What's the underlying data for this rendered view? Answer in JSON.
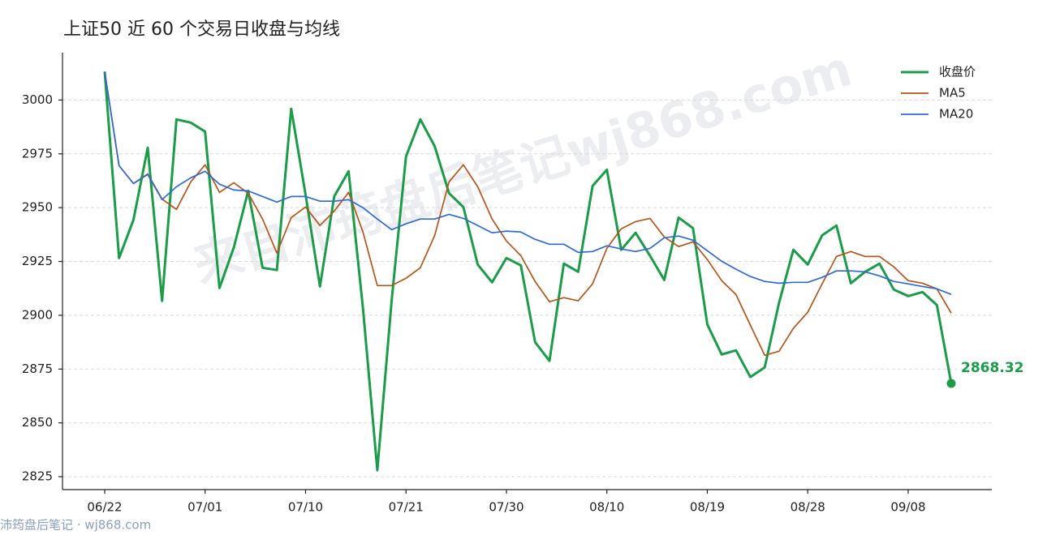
{
  "chart_data": {
    "type": "line",
    "title": "上证50 近 60 个交易日收盘与均线",
    "watermark": "来自沛筠盘后笔记wj868.com",
    "source": "沛筠盘后笔记 · wj868.com",
    "categories": [
      "06/22",
      null,
      null,
      null,
      null,
      null,
      null,
      "07/01",
      null,
      null,
      null,
      null,
      null,
      null,
      "07/10",
      null,
      null,
      null,
      null,
      null,
      null,
      "07/21",
      null,
      null,
      null,
      null,
      null,
      null,
      "07/30",
      null,
      null,
      null,
      null,
      null,
      null,
      "08/10",
      null,
      null,
      null,
      null,
      null,
      null,
      "08/19",
      null,
      null,
      null,
      null,
      null,
      null,
      "08/28",
      null,
      null,
      null,
      null,
      null,
      null,
      "09/08",
      null,
      null,
      null
    ],
    "series": [
      {
        "name": "收盘价",
        "color": "#1a9c48",
        "values": [
          3013.2,
          2926.6,
          2944.3,
          2977.8,
          2906.7,
          2991,
          2989.5,
          2985.3,
          2912.7,
          2931.5,
          2957.8,
          2922.1,
          2921,
          2995.9,
          2956,
          2913.4,
          2955.2,
          2966.9,
          2903.3,
          2828,
          2907,
          2973.7,
          2991,
          2978.5,
          2956.7,
          2950.3,
          2923.6,
          2915.3,
          2926.6,
          2923.2,
          2887.5,
          2878.8,
          2924,
          2920.2,
          2960.1,
          2967.6,
          2930.4,
          2938.3,
          2927.7,
          2916.4,
          2945.4,
          2940.5,
          2895.7,
          2881.8,
          2883.7,
          2871.3,
          2875.8,
          2905.9,
          2930.4,
          2923.6,
          2937.1,
          2941.7,
          2914.9,
          2920.2,
          2924,
          2911.9,
          2908.9,
          2910.8,
          2904.8,
          2868.32
        ]
      },
      {
        "name": "MA5",
        "color": "#b5561a",
        "values": [
          3013.2,
          2969.5,
          2961.2,
          2965.7,
          2954,
          2949.2,
          2962,
          2969.9,
          2957.1,
          2961.6,
          2956.7,
          2944.7,
          2928.9,
          2945.4,
          2950.3,
          2941.7,
          2948.4,
          2957.1,
          2938.7,
          2913.8,
          2913.8,
          2917.2,
          2922.1,
          2937.1,
          2962,
          2969.9,
          2959.7,
          2944.7,
          2934.5,
          2927.7,
          2915.7,
          2906.3,
          2908.2,
          2906.7,
          2914.6,
          2931.1,
          2940.2,
          2943.5,
          2945,
          2936.4,
          2931.9,
          2934.1,
          2925.9,
          2916.1,
          2909.6,
          2895.4,
          2881.4,
          2883.3,
          2893.9,
          2901.4,
          2914.6,
          2927.3,
          2929.6,
          2927.3,
          2927.3,
          2922.5,
          2916.1,
          2914.9,
          2912.3,
          2901
        ]
      },
      {
        "name": "MA20",
        "color": "#2f6bd6",
        "values": [
          3013.2,
          2969.5,
          2961.2,
          2965.4,
          2953.7,
          2959.7,
          2963.9,
          2966.9,
          2960.9,
          2958.2,
          2957.8,
          2955.2,
          2952.6,
          2955.2,
          2955.2,
          2953,
          2953,
          2953.7,
          2950,
          2944.7,
          2939.8,
          2942.5,
          2944.7,
          2944.7,
          2946.9,
          2945,
          2941.7,
          2938.3,
          2939.1,
          2938.7,
          2935.3,
          2933,
          2933,
          2929.2,
          2929.6,
          2932.3,
          2930.8,
          2929.6,
          2931.1,
          2936,
          2936.8,
          2934.9,
          2930,
          2925.1,
          2921.4,
          2918,
          2915.7,
          2914.9,
          2915.3,
          2915.3,
          2917.6,
          2920.6,
          2920.6,
          2920.2,
          2918.3,
          2915.7,
          2914.6,
          2913.4,
          2912.3,
          2909.7
        ]
      }
    ],
    "ylim": [
      2819,
      3022
    ],
    "yticks": [
      2825,
      2850,
      2875,
      2900,
      2925,
      2950,
      2975,
      3000
    ],
    "grid": true,
    "legend": "upper right"
  }
}
